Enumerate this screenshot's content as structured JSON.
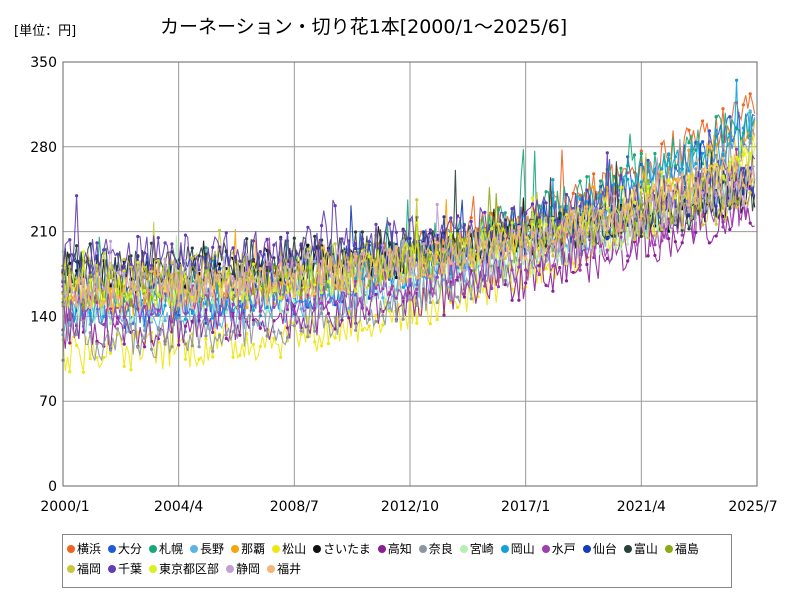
{
  "chart_data": {
    "type": "line",
    "title": "カーネーション・切り花1本[2000/1～2025/6]",
    "unit_label": "[単位：円]",
    "x_ticks": [
      "2000/1",
      "2004/4",
      "2008/7",
      "2012/10",
      "2017/1",
      "2021/4",
      "2025/7"
    ],
    "y_ticks": [
      0,
      70,
      140,
      210,
      280,
      350
    ],
    "ylim": [
      0,
      350
    ],
    "xlim": [
      "2000/1",
      "2025/7"
    ],
    "grid": true,
    "legend_position": "bottom",
    "series": [
      {
        "name": "横浜",
        "color": "#f0641e",
        "start": 160,
        "end": 310
      },
      {
        "name": "大分",
        "color": "#1e5adc",
        "start": 145,
        "end": 300
      },
      {
        "name": "札幌",
        "color": "#18a878",
        "start": 165,
        "end": 305
      },
      {
        "name": "長野",
        "color": "#5ab4e6",
        "start": 140,
        "end": 260
      },
      {
        "name": "那覇",
        "color": "#f5a50a",
        "start": 155,
        "end": 290
      },
      {
        "name": "松山",
        "color": "#f0e614",
        "start": 110,
        "end": 270
      },
      {
        "name": "さいたま",
        "color": "#111111",
        "start": 175,
        "end": 245
      },
      {
        "name": "高知",
        "color": "#8c1e96",
        "start": 130,
        "end": 230
      },
      {
        "name": "奈良",
        "color": "#8c96a0",
        "start": 120,
        "end": 280
      },
      {
        "name": "宮崎",
        "color": "#b4f0b4",
        "start": 150,
        "end": 250
      },
      {
        "name": "岡山",
        "color": "#14a0dc",
        "start": 150,
        "end": 295
      },
      {
        "name": "水戸",
        "color": "#a03cb4",
        "start": 150,
        "end": 235
      },
      {
        "name": "仙台",
        "color": "#143cb4",
        "start": 175,
        "end": 250
      },
      {
        "name": "富山",
        "color": "#28413c",
        "start": 185,
        "end": 240
      },
      {
        "name": "福島",
        "color": "#8caa14",
        "start": 165,
        "end": 255
      },
      {
        "name": "福岡",
        "color": "#c8c83c",
        "start": 175,
        "end": 240
      },
      {
        "name": "千葉",
        "color": "#643cb4",
        "start": 190,
        "end": 260
      },
      {
        "name": "東京都区部",
        "color": "#dcf01e",
        "start": 160,
        "end": 275
      },
      {
        "name": "静岡",
        "color": "#c3a0d2",
        "start": 170,
        "end": 250
      },
      {
        "name": "福井",
        "color": "#f5b478",
        "start": 160,
        "end": 265
      }
    ]
  }
}
